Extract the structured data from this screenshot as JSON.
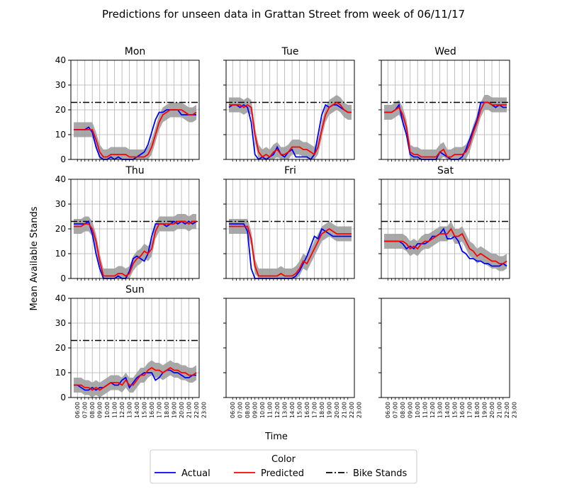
{
  "chart_data": {
    "type": "line",
    "title": "Predictions for unseen data in Grattan Street from week of 06/11/17",
    "xlabel": "Time",
    "ylabel": "Mean Available Stands",
    "ylim": [
      0,
      40
    ],
    "yticks": [
      0,
      10,
      20,
      30,
      40
    ],
    "x_tick_labels": [
      "06:00",
      "07:00",
      "08:00",
      "09:00",
      "10:00",
      "11:00",
      "12:00",
      "13:00",
      "14:00",
      "15:00",
      "16:00",
      "17:00",
      "18:00",
      "19:00",
      "20:00",
      "21:00",
      "22:00",
      "23:00"
    ],
    "bike_stands": 23,
    "grid": true,
    "band_color": "#9e9e9e",
    "legend": {
      "title": "Color",
      "placement": "bottom-center",
      "entries": [
        {
          "label": "Actual",
          "color": "#0000ff",
          "style": "solid"
        },
        {
          "label": "Predicted",
          "color": "#ff0000",
          "style": "solid"
        },
        {
          "label": "Bike Stands",
          "color": "#000000",
          "style": "dashdot"
        }
      ]
    },
    "panels": [
      {
        "title": "Mon",
        "actual": [
          12,
          12,
          12,
          12,
          13,
          11,
          5,
          1,
          0,
          0,
          1,
          0,
          1,
          0,
          0,
          0,
          0,
          1,
          2,
          3,
          6,
          11,
          16,
          19,
          19,
          20,
          20,
          20,
          20,
          18,
          18,
          18,
          18,
          18
        ],
        "predicted": [
          12,
          12,
          12,
          12,
          12,
          12,
          8,
          3,
          1,
          1,
          2,
          2,
          2,
          2,
          2,
          1,
          1,
          1,
          1,
          1,
          2,
          5,
          10,
          15,
          18,
          19,
          20,
          20,
          20,
          20,
          19,
          18,
          18,
          19
        ]
      },
      {
        "title": "Tue",
        "actual": [
          21,
          22,
          22,
          21,
          22,
          21,
          15,
          2,
          0,
          1,
          0,
          1,
          2,
          5,
          2,
          1,
          3,
          4,
          1,
          1,
          1,
          1,
          0,
          2,
          10,
          18,
          22,
          21,
          22,
          22,
          21,
          20,
          19,
          19
        ],
        "predicted": [
          22,
          22,
          22,
          22,
          21,
          22,
          21,
          10,
          3,
          1,
          2,
          1,
          3,
          4,
          2,
          2,
          3,
          5,
          5,
          5,
          4,
          4,
          3,
          2,
          5,
          12,
          18,
          21,
          22,
          23,
          22,
          20,
          19,
          19
        ]
      },
      {
        "title": "Wed",
        "actual": [
          19,
          19,
          19,
          20,
          22,
          15,
          10,
          2,
          1,
          1,
          0,
          0,
          0,
          0,
          0,
          3,
          2,
          1,
          0,
          0,
          0,
          1,
          4,
          8,
          12,
          16,
          23,
          23,
          23,
          22,
          21,
          22,
          21,
          21
        ],
        "predicted": [
          19,
          19,
          19,
          20,
          21,
          18,
          13,
          3,
          2,
          2,
          1,
          1,
          1,
          1,
          1,
          3,
          4,
          1,
          1,
          2,
          2,
          2,
          3,
          6,
          11,
          15,
          20,
          23,
          23,
          22,
          22,
          22,
          22,
          22
        ]
      },
      {
        "title": "Thu",
        "actual": [
          22,
          22,
          22,
          22,
          23,
          18,
          10,
          4,
          0,
          0,
          0,
          0,
          1,
          0,
          0,
          3,
          8,
          9,
          8,
          7,
          10,
          17,
          22,
          22,
          22,
          21,
          22,
          23,
          22,
          23,
          22,
          23,
          22,
          23
        ],
        "predicted": [
          21,
          21,
          21,
          22,
          22,
          20,
          15,
          7,
          1,
          1,
          1,
          1,
          2,
          2,
          1,
          2,
          6,
          8,
          9,
          11,
          10,
          12,
          19,
          22,
          22,
          22,
          22,
          22,
          23,
          23,
          23,
          22,
          23,
          23
        ]
      },
      {
        "title": "Fri",
        "actual": [
          22,
          22,
          22,
          22,
          22,
          19,
          4,
          0,
          0,
          0,
          0,
          0,
          0,
          0,
          0,
          0,
          0,
          0,
          1,
          3,
          6,
          9,
          13,
          17,
          16,
          20,
          19,
          18,
          17,
          17,
          17,
          17,
          17,
          17
        ],
        "predicted": [
          21,
          21,
          21,
          21,
          21,
          21,
          16,
          5,
          1,
          1,
          1,
          1,
          1,
          1,
          2,
          1,
          1,
          1,
          2,
          4,
          7,
          6,
          9,
          12,
          15,
          18,
          19,
          20,
          19,
          18,
          18,
          18,
          18,
          18
        ]
      },
      {
        "title": "Sat",
        "actual": [
          15,
          15,
          15,
          15,
          15,
          14,
          12,
          13,
          12,
          14,
          14,
          14,
          15,
          17,
          17,
          18,
          20,
          16,
          16,
          17,
          15,
          11,
          10,
          8,
          8,
          7,
          7,
          6,
          6,
          5,
          5,
          5,
          6,
          5
        ],
        "predicted": [
          15,
          15,
          15,
          15,
          15,
          15,
          14,
          12,
          13,
          12,
          14,
          15,
          15,
          16,
          17,
          18,
          18,
          18,
          20,
          17,
          17,
          18,
          15,
          12,
          11,
          9,
          10,
          9,
          8,
          7,
          7,
          6,
          6,
          7
        ]
      },
      {
        "title": "Sun",
        "actual": [
          5,
          5,
          4,
          3,
          3,
          4,
          3,
          4,
          4,
          5,
          6,
          5,
          5,
          7,
          8,
          4,
          6,
          8,
          9,
          10,
          10,
          10,
          7,
          8,
          10,
          11,
          11,
          10,
          10,
          9,
          8,
          8,
          9,
          9
        ],
        "predicted": [
          5,
          5,
          5,
          4,
          4,
          3,
          4,
          3,
          4,
          5,
          6,
          6,
          6,
          5,
          7,
          5,
          5,
          7,
          9,
          9,
          11,
          12,
          11,
          11,
          10,
          11,
          12,
          11,
          11,
          10,
          10,
          9,
          9,
          10
        ]
      },
      {
        "title": "",
        "actual": [],
        "predicted": []
      },
      {
        "title": "",
        "actual": [],
        "predicted": []
      }
    ]
  }
}
